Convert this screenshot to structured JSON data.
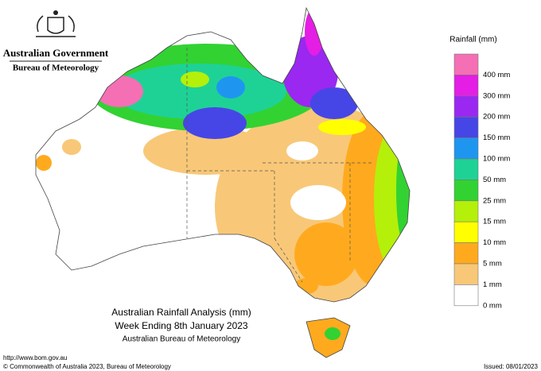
{
  "header": {
    "government": "Australian Government",
    "agency": "Bureau of Meteorology"
  },
  "legend": {
    "title": "Rainfall (mm)",
    "items": [
      {
        "label": null,
        "color": "#f46fb4"
      },
      {
        "label": "400 mm",
        "color": "#e41ee4"
      },
      {
        "label": "300 mm",
        "color": "#9a28f0"
      },
      {
        "label": "200 mm",
        "color": "#4646e6"
      },
      {
        "label": "150 mm",
        "color": "#1e96f0"
      },
      {
        "label": "100 mm",
        "color": "#1ed296"
      },
      {
        "label": "50 mm",
        "color": "#32d232"
      },
      {
        "label": "25 mm",
        "color": "#b4f00a"
      },
      {
        "label": "15 mm",
        "color": "#ffff00"
      },
      {
        "label": "10 mm",
        "color": "#ffaa1e"
      },
      {
        "label": "5 mm",
        "color": "#f8c878"
      },
      {
        "label": "1 mm",
        "color": "#ffffff"
      }
    ],
    "bottom_label": "0 mm"
  },
  "caption": {
    "line1": "Australian Rainfall Analysis (mm)",
    "line2": "Week Ending 8th January 2023",
    "line3": "Australian Bureau of Meteorology"
  },
  "footer": {
    "url": "http://www.bom.gov.au",
    "copyright": "© Commonwealth of Australia 2023, Bureau of Meteorology",
    "issued": "Issued: 08/01/2023"
  }
}
